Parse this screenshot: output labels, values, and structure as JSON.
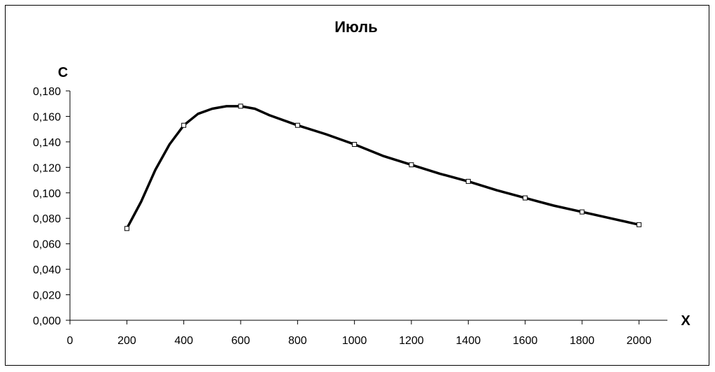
{
  "chart_data": {
    "type": "line",
    "title": "Июль",
    "xlabel": "X",
    "ylabel": "C",
    "xlim": [
      0,
      2100
    ],
    "ylim": [
      0,
      0.18
    ],
    "x_ticks": [
      {
        "value": 0,
        "label": "0"
      },
      {
        "value": 200,
        "label": "200"
      },
      {
        "value": 400,
        "label": "400"
      },
      {
        "value": 600,
        "label": "600"
      },
      {
        "value": 800,
        "label": "800"
      },
      {
        "value": 1000,
        "label": "1000"
      },
      {
        "value": 1200,
        "label": "1200"
      },
      {
        "value": 1400,
        "label": "1400"
      },
      {
        "value": 1600,
        "label": "1600"
      },
      {
        "value": 1800,
        "label": "1800"
      },
      {
        "value": 2000,
        "label": "2000"
      }
    ],
    "y_ticks": [
      {
        "value": 0,
        "label": "0,000"
      },
      {
        "value": 0.02,
        "label": "0,020"
      },
      {
        "value": 0.04,
        "label": "0,040"
      },
      {
        "value": 0.06,
        "label": "0,060"
      },
      {
        "value": 0.08,
        "label": "0,080"
      },
      {
        "value": 0.1,
        "label": "0,100"
      },
      {
        "value": 0.12,
        "label": "0,120"
      },
      {
        "value": 0.14,
        "label": "0,140"
      },
      {
        "value": 0.16,
        "label": "0,160"
      },
      {
        "value": 0.18,
        "label": "0,180"
      }
    ],
    "grid": false,
    "legend": "none",
    "series": [
      {
        "color": "#000000",
        "x": [
          200,
          250,
          300,
          350,
          400,
          450,
          500,
          550,
          600,
          650,
          700,
          800,
          900,
          1000,
          1100,
          1200,
          1300,
          1400,
          1500,
          1600,
          1700,
          1800,
          1900,
          2000
        ],
        "y": [
          0.072,
          0.093,
          0.118,
          0.138,
          0.153,
          0.162,
          0.166,
          0.168,
          0.168,
          0.166,
          0.161,
          0.153,
          0.146,
          0.138,
          0.129,
          0.122,
          0.115,
          0.109,
          0.102,
          0.096,
          0.09,
          0.085,
          0.08,
          0.075
        ],
        "markers_at": [
          200,
          400,
          600,
          800,
          1000,
          1200,
          1400,
          1600,
          1800,
          2000
        ]
      }
    ]
  }
}
